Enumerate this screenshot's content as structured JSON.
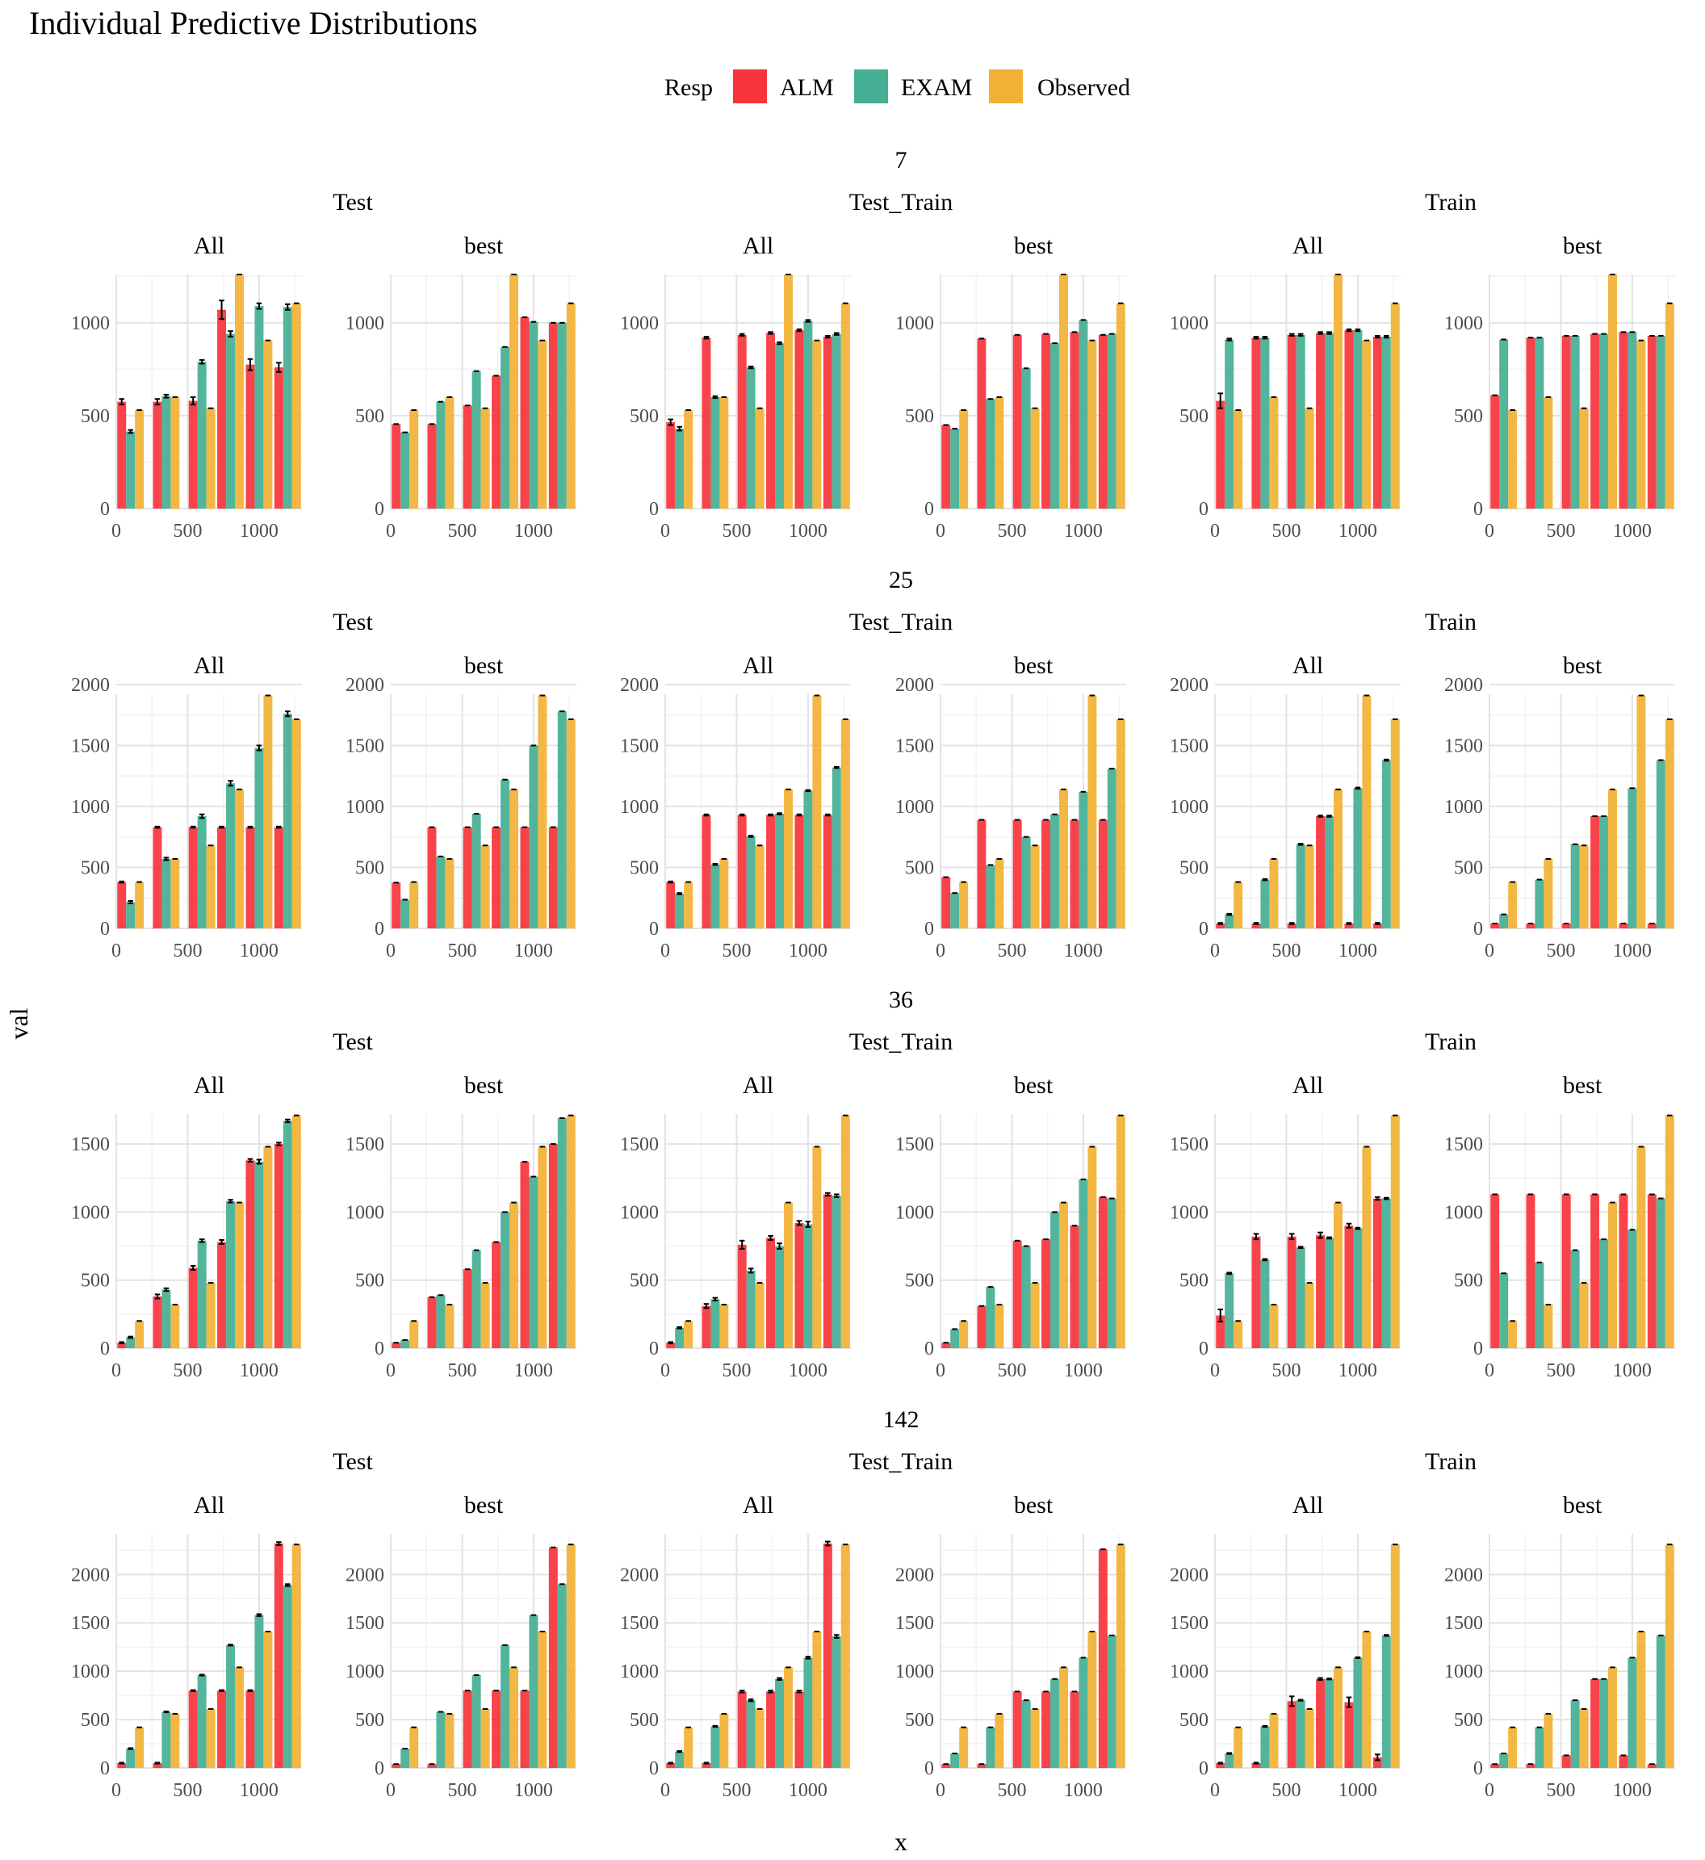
{
  "chart_data": {
    "type": "bar",
    "title": "Individual Predictive Distributions",
    "xlabel": "x",
    "ylabel": "val",
    "legend": {
      "title": "Resp",
      "position": "top",
      "entries": [
        {
          "name": "ALM",
          "color": "#F8333C"
        },
        {
          "name": "EXAM",
          "color": "#44AF93"
        },
        {
          "name": "Observed",
          "color": "#F2B134"
        }
      ]
    },
    "x_positions": [
      100,
      350,
      600,
      800,
      1000,
      1200
    ],
    "xlim": [
      0,
      1300
    ],
    "x_ticks": [
      0,
      500,
      1000
    ],
    "group_labels": [
      "Test",
      "Test_Train",
      "Train"
    ],
    "fit_labels": [
      "All",
      "best"
    ],
    "grid": true,
    "rows": [
      {
        "id": "7",
        "ylim": [
          0,
          1260
        ],
        "y_ticks": [
          0,
          500,
          1000
        ],
        "observed": [
          530,
          600,
          540,
          1260,
          905,
          1105
        ],
        "panels": [
          {
            "group": "Test",
            "fit": "All",
            "ALM": [
              575,
              575,
              580,
              1070,
              775,
              760
            ],
            "EXAM": [
              415,
              605,
              790,
              940,
              1090,
              1085
            ],
            "alm_err": [
              15,
              15,
              20,
              50,
              30,
              25
            ],
            "exam_err": [
              8,
              8,
              10,
              15,
              15,
              15
            ]
          },
          {
            "group": "Test",
            "fit": "best",
            "ALM": [
              455,
              455,
              555,
              715,
              1030,
              1000
            ],
            "EXAM": [
              410,
              575,
              740,
              870,
              1005,
              1000
            ]
          },
          {
            "group": "Test_Train",
            "fit": "All",
            "ALM": [
              465,
              920,
              935,
              945,
              960,
              925
            ],
            "EXAM": [
              430,
              600,
              760,
              890,
              1010,
              940
            ],
            "alm_err": [
              15,
              5,
              5,
              5,
              5,
              5
            ],
            "exam_err": [
              10,
              5,
              5,
              5,
              5,
              5
            ]
          },
          {
            "group": "Test_Train",
            "fit": "best",
            "ALM": [
              450,
              915,
              935,
              940,
              950,
              935
            ],
            "EXAM": [
              430,
              590,
              755,
              890,
              1015,
              940
            ]
          },
          {
            "group": "Train",
            "fit": "All",
            "ALM": [
              580,
              920,
              935,
              945,
              960,
              925
            ],
            "EXAM": [
              910,
              920,
              935,
              945,
              960,
              925
            ],
            "alm_err": [
              40,
              5,
              5,
              5,
              5,
              5
            ],
            "exam_err": [
              5,
              5,
              5,
              5,
              5,
              5
            ]
          },
          {
            "group": "Train",
            "fit": "best",
            "ALM": [
              610,
              920,
              930,
              940,
              950,
              930
            ],
            "EXAM": [
              910,
              920,
              930,
              940,
              950,
              930
            ]
          }
        ]
      },
      {
        "id": "25",
        "ylim": [
          0,
          1920
        ],
        "y_ticks": [
          0,
          500,
          1000,
          1500,
          2000
        ],
        "observed": [
          380,
          570,
          680,
          1140,
          1910,
          1715
        ],
        "panels": [
          {
            "group": "Test",
            "fit": "All",
            "ALM": [
              380,
              830,
              830,
              830,
              830,
              830
            ],
            "EXAM": [
              215,
              570,
              920,
              1190,
              1480,
              1760
            ],
            "alm_err": [
              5,
              5,
              5,
              5,
              5,
              5
            ],
            "exam_err": [
              10,
              10,
              15,
              20,
              20,
              20
            ]
          },
          {
            "group": "Test",
            "fit": "best",
            "ALM": [
              375,
              830,
              830,
              830,
              830,
              830
            ],
            "EXAM": [
              235,
              590,
              940,
              1220,
              1500,
              1780
            ]
          },
          {
            "group": "Test_Train",
            "fit": "All",
            "ALM": [
              380,
              930,
              930,
              930,
              930,
              930
            ],
            "EXAM": [
              285,
              525,
              755,
              940,
              1130,
              1320
            ],
            "alm_err": [
              5,
              5,
              5,
              5,
              5,
              5
            ],
            "exam_err": [
              5,
              5,
              5,
              5,
              5,
              5
            ]
          },
          {
            "group": "Test_Train",
            "fit": "best",
            "ALM": [
              420,
              890,
              890,
              890,
              890,
              890
            ],
            "EXAM": [
              290,
              520,
              750,
              935,
              1120,
              1310
            ]
          },
          {
            "group": "Train",
            "fit": "All",
            "ALM": [
              40,
              40,
              40,
              920,
              40,
              40
            ],
            "EXAM": [
              115,
              400,
              690,
              920,
              1150,
              1380
            ],
            "alm_err": [
              5,
              5,
              5,
              5,
              5,
              5
            ],
            "exam_err": [
              5,
              5,
              5,
              5,
              5,
              5
            ]
          },
          {
            "group": "Train",
            "fit": "best",
            "ALM": [
              40,
              40,
              40,
              920,
              40,
              40
            ],
            "EXAM": [
              115,
              400,
              690,
              920,
              1150,
              1380
            ]
          }
        ]
      },
      {
        "id": "36",
        "ylim": [
          0,
          1720
        ],
        "y_ticks": [
          0,
          500,
          1000,
          1500
        ],
        "observed": [
          200,
          320,
          480,
          1070,
          1480,
          1710
        ],
        "panels": [
          {
            "group": "Test",
            "fit": "All",
            "ALM": [
              40,
              380,
              590,
              780,
              1380,
              1500
            ],
            "EXAM": [
              80,
              430,
              790,
              1080,
              1370,
              1670
            ],
            "alm_err": [
              5,
              15,
              15,
              15,
              10,
              10
            ],
            "exam_err": [
              5,
              10,
              10,
              10,
              15,
              10
            ]
          },
          {
            "group": "Test",
            "fit": "best",
            "ALM": [
              40,
              375,
              580,
              780,
              1370,
              1500
            ],
            "EXAM": [
              60,
              390,
              720,
              1000,
              1260,
              1690
            ]
          },
          {
            "group": "Test_Train",
            "fit": "All",
            "ALM": [
              40,
              310,
              760,
              810,
              920,
              1130
            ],
            "EXAM": [
              150,
              360,
              570,
              750,
              910,
              1120
            ],
            "alm_err": [
              5,
              15,
              30,
              15,
              15,
              10
            ],
            "exam_err": [
              5,
              10,
              15,
              20,
              20,
              10
            ]
          },
          {
            "group": "Test_Train",
            "fit": "best",
            "ALM": [
              40,
              310,
              790,
              800,
              900,
              1110
            ],
            "EXAM": [
              140,
              450,
              750,
              1000,
              1240,
              1100
            ]
          },
          {
            "group": "Train",
            "fit": "All",
            "ALM": [
              240,
              820,
              820,
              830,
              900,
              1100
            ],
            "EXAM": [
              550,
              650,
              740,
              810,
              880,
              1100
            ],
            "alm_err": [
              45,
              20,
              20,
              20,
              15,
              10
            ],
            "exam_err": [
              5,
              5,
              5,
              5,
              5,
              5
            ]
          },
          {
            "group": "Train",
            "fit": "best",
            "ALM": [
              1130,
              1130,
              1130,
              1130,
              1130,
              1130
            ],
            "EXAM": [
              550,
              630,
              720,
              800,
              870,
              1100
            ]
          }
        ]
      },
      {
        "id": "142",
        "ylim": [
          0,
          2420
        ],
        "y_ticks": [
          0,
          500,
          1000,
          1500,
          2000
        ],
        "observed": [
          420,
          560,
          610,
          1040,
          1410,
          2310
        ],
        "panels": [
          {
            "group": "Test",
            "fit": "All",
            "ALM": [
              50,
              50,
              800,
              800,
              800,
              2320
            ],
            "EXAM": [
              200,
              580,
              960,
              1270,
              1580,
              1890
            ],
            "alm_err": [
              5,
              5,
              5,
              5,
              5,
              15
            ],
            "exam_err": [
              5,
              5,
              5,
              5,
              10,
              10
            ]
          },
          {
            "group": "Test",
            "fit": "best",
            "ALM": [
              40,
              40,
              800,
              800,
              800,
              2280
            ],
            "EXAM": [
              200,
              580,
              960,
              1270,
              1580,
              1900
            ]
          },
          {
            "group": "Test_Train",
            "fit": "All",
            "ALM": [
              50,
              50,
              790,
              790,
              790,
              2320
            ],
            "EXAM": [
              170,
              430,
              700,
              920,
              1140,
              1360
            ],
            "alm_err": [
              5,
              5,
              10,
              10,
              10,
              20
            ],
            "exam_err": [
              5,
              5,
              10,
              10,
              10,
              15
            ]
          },
          {
            "group": "Test_Train",
            "fit": "best",
            "ALM": [
              40,
              40,
              790,
              790,
              790,
              2260
            ],
            "EXAM": [
              150,
              420,
              700,
              920,
              1140,
              1370
            ]
          },
          {
            "group": "Train",
            "fit": "All",
            "ALM": [
              50,
              50,
              690,
              920,
              680,
              110
            ],
            "EXAM": [
              150,
              430,
              700,
              920,
              1140,
              1370
            ],
            "alm_err": [
              5,
              5,
              50,
              10,
              50,
              30
            ],
            "exam_err": [
              5,
              5,
              5,
              5,
              5,
              5
            ]
          },
          {
            "group": "Train",
            "fit": "best",
            "ALM": [
              40,
              40,
              130,
              920,
              130,
              40
            ],
            "EXAM": [
              150,
              420,
              700,
              920,
              1140,
              1370
            ]
          }
        ]
      }
    ]
  }
}
